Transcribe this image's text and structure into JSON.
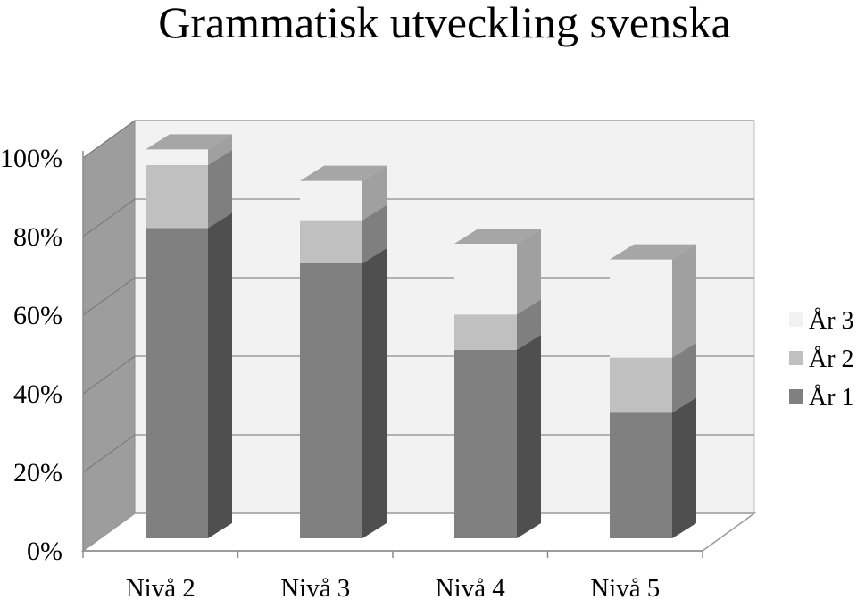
{
  "chart_data": {
    "type": "bar",
    "stacked": true,
    "three_d": true,
    "title": "Grammatisk utveckling svenska",
    "categories": [
      "Nivå 2",
      "Nivå 3",
      "Nivå 4",
      "Nivå 5"
    ],
    "series": [
      {
        "name": "År 1",
        "values": [
          79,
          70,
          48,
          32
        ],
        "color": "#808080"
      },
      {
        "name": "År 2",
        "values": [
          16,
          11,
          9,
          14
        ],
        "color": "#c0c0c0"
      },
      {
        "name": "År 3",
        "values": [
          4,
          10,
          18,
          25
        ],
        "color": "#f2f2f2"
      }
    ],
    "y_ticks": [
      "0%",
      "20%",
      "40%",
      "60%",
      "80%",
      "100%"
    ],
    "ylim": [
      0,
      100
    ],
    "grid": true,
    "legend": "right"
  }
}
